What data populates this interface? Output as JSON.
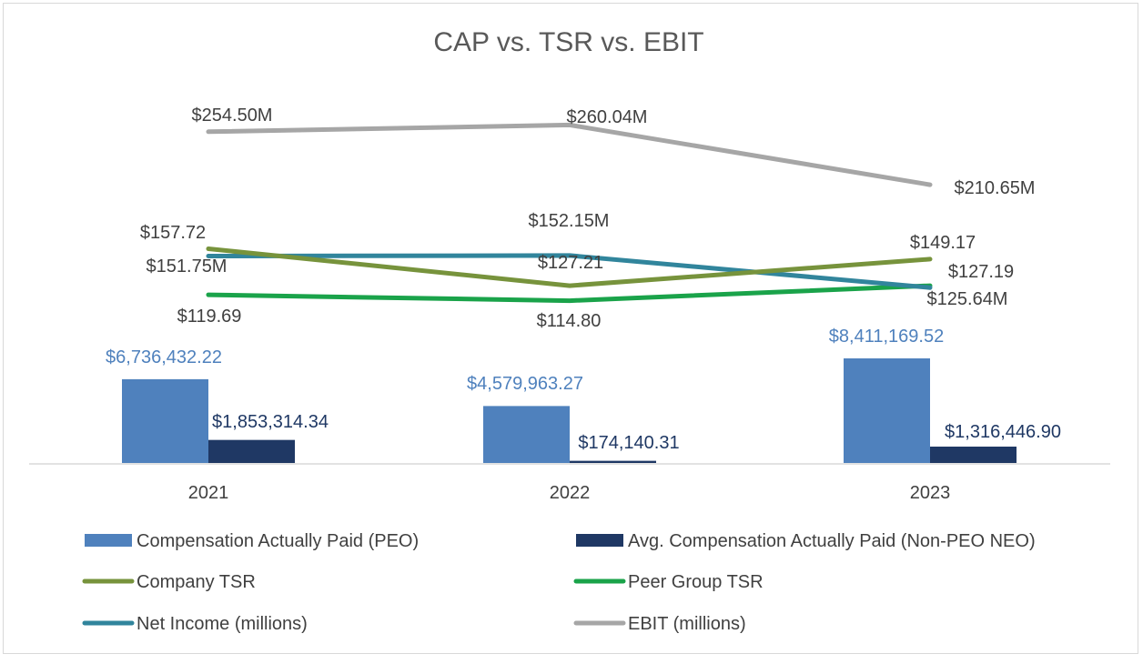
{
  "chart_data": {
    "type": "bar+line",
    "title": "CAP vs. TSR vs. EBIT",
    "categories": [
      "2021",
      "2022",
      "2023"
    ],
    "bar_series": [
      {
        "name": "Compensation Actually Paid (PEO)",
        "color": "#4f81bd",
        "label_color": "#4f81bd",
        "values": [
          6736432.22,
          4579963.27,
          8411169.52
        ],
        "labels": [
          "$6,736,432.22",
          "$4,579,963.27",
          "$8,411,169.52"
        ]
      },
      {
        "name": "Avg. Compensation Actually Paid (Non-PEO NEO)",
        "color": "#1f3864",
        "label_color": "#1f3864",
        "values": [
          1853314.34,
          174140.31,
          1316446.9
        ],
        "labels": [
          "$1,853,314.34",
          "$174,140.31",
          "$1,316,446.90"
        ]
      }
    ],
    "line_series": [
      {
        "name": "Company TSR",
        "color": "#77933c",
        "values": [
          157.72,
          127.21,
          149.17
        ],
        "labels": [
          "$157.72",
          "$127.21",
          "$149.17"
        ]
      },
      {
        "name": "Peer Group TSR",
        "color": "#1aa34a",
        "values": [
          119.69,
          114.8,
          127.19
        ],
        "labels": [
          "$119.69",
          "$114.80",
          "$127.19"
        ]
      },
      {
        "name": "Net Income (millions)",
        "color": "#31859c",
        "values": [
          151.75,
          152.15,
          125.64
        ],
        "labels": [
          "$151.75M",
          "$152.15M",
          "$125.64M"
        ]
      },
      {
        "name": "EBIT (millions)",
        "color": "#a6a6a6",
        "values": [
          254.5,
          260.04,
          210.65
        ],
        "labels": [
          "$254.50M",
          "$260.04M",
          "$210.65M"
        ]
      }
    ],
    "legend_position": "bottom",
    "grid": false
  }
}
